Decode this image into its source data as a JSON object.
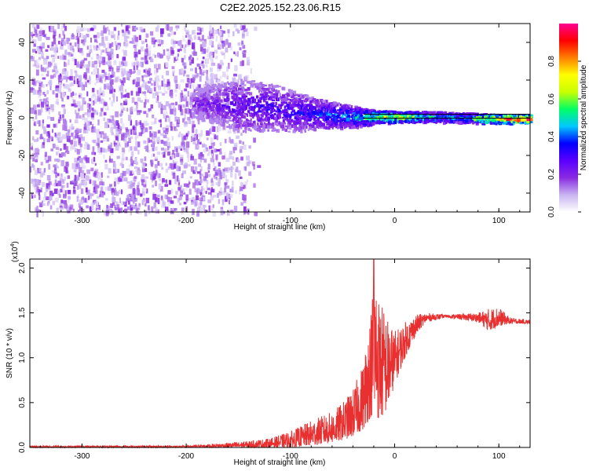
{
  "figure": {
    "title": "C2E2.2025.152.23.06.R15"
  },
  "chart_data": [
    {
      "type": "heatmap",
      "xlabel": "Height of straight line (km)",
      "ylabel": "Frequency (Hz)",
      "xlim": [
        -350,
        130
      ],
      "ylim": [
        -50,
        50
      ],
      "xticks": [
        -300,
        -200,
        -100,
        0,
        100
      ],
      "yticks": [
        -40,
        -20,
        0,
        20,
        40
      ],
      "grid": false,
      "colorbar": {
        "label": "Normalized spectral amplitude",
        "range": [
          0,
          1
        ],
        "ticks": [
          "0.0",
          "0.2",
          "0.4",
          "0.6",
          "0.8"
        ],
        "colormap": [
          "#ffffff",
          "#c8b4f0",
          "#8a2be2",
          "#5a00ff",
          "#0000ff",
          "#00c8ff",
          "#00ff64",
          "#c8ff00",
          "#ffff00",
          "#ff8000",
          "#ff0000",
          "#ff0090"
        ]
      },
      "features": {
        "noise_region_x": [
          -350,
          -170
        ],
        "noise_region_y": [
          -50,
          50
        ],
        "carrier_band": [
          {
            "x": -195,
            "f_center": 8,
            "f_halfwidth": 5,
            "amp": 0.2
          },
          {
            "x": -170,
            "f_center": 8,
            "f_halfwidth": 8,
            "amp": 0.25
          },
          {
            "x": -150,
            "f_center": 7,
            "f_halfwidth": 10,
            "amp": 0.28
          },
          {
            "x": -120,
            "f_center": 6,
            "f_halfwidth": 9,
            "amp": 0.3
          },
          {
            "x": -100,
            "f_center": 4,
            "f_halfwidth": 8,
            "amp": 0.3
          },
          {
            "x": -80,
            "f_center": 3,
            "f_halfwidth": 6,
            "amp": 0.35
          },
          {
            "x": -60,
            "f_center": 2,
            "f_halfwidth": 5,
            "amp": 0.4
          },
          {
            "x": -40,
            "f_center": 1,
            "f_halfwidth": 4,
            "amp": 0.45
          },
          {
            "x": -20,
            "f_center": 1,
            "f_halfwidth": 2.5,
            "amp": 0.6
          },
          {
            "x": 0,
            "f_center": 1,
            "f_halfwidth": 2,
            "amp": 0.75
          },
          {
            "x": 30,
            "f_center": 1,
            "f_halfwidth": 2,
            "amp": 0.5
          },
          {
            "x": 70,
            "f_center": 0.5,
            "f_halfwidth": 1.8,
            "amp": 0.5
          },
          {
            "x": 100,
            "f_center": 0,
            "f_halfwidth": 1.5,
            "amp": 0.9
          },
          {
            "x": 130,
            "f_center": 0,
            "f_halfwidth": 1.5,
            "amp": 0.95
          }
        ]
      }
    },
    {
      "type": "line",
      "xlabel": "Height of straight line (km)",
      "ylabel": "SNR (10 * v/v)",
      "y_multiplier": "(x10^4)",
      "xlim": [
        -350,
        130
      ],
      "ylim": [
        0,
        2.1
      ],
      "xticks": [
        -300,
        -200,
        -100,
        0,
        100
      ],
      "yticks": [
        "0.0",
        "0.5",
        "1.0",
        "1.5",
        "2.0"
      ],
      "grid": false,
      "color": "#e83030",
      "envelope": {
        "x": [
          -350,
          -250,
          -200,
          -150,
          -120,
          -100,
          -80,
          -60,
          -50,
          -40,
          -30,
          -25,
          -22,
          -20,
          -15,
          -10,
          -5,
          0,
          10,
          20,
          30,
          50,
          80,
          90,
          100,
          110,
          130
        ],
        "low": [
          0.0,
          0.0,
          0.0,
          0.0,
          0.0,
          0.0,
          0.02,
          0.05,
          0.08,
          0.12,
          0.2,
          0.3,
          0.35,
          0.4,
          0.3,
          0.35,
          0.5,
          0.7,
          1.0,
          1.25,
          1.4,
          1.45,
          1.4,
          1.3,
          1.35,
          1.38,
          1.38
        ],
        "high": [
          0.02,
          0.02,
          0.02,
          0.06,
          0.1,
          0.18,
          0.3,
          0.4,
          0.5,
          0.65,
          0.95,
          1.4,
          1.6,
          2.1,
          1.7,
          1.55,
          1.4,
          1.3,
          1.4,
          1.48,
          1.5,
          1.48,
          1.5,
          1.55,
          1.57,
          1.45,
          1.42
        ]
      }
    }
  ]
}
